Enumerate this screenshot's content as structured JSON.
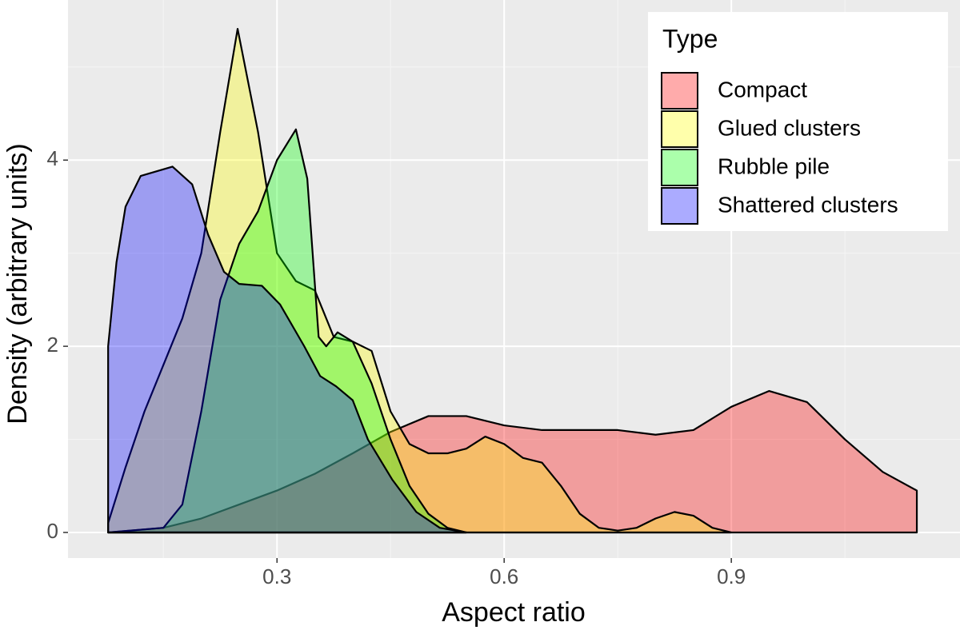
{
  "chart_data": {
    "type": "density",
    "xlabel": "Aspect ratio",
    "ylabel": "Density (arbitrary units)",
    "legend_title": "Type",
    "legend_position": "top-right",
    "alpha": 0.33,
    "grid": true,
    "xlim": [
      0.024,
      1.202
    ],
    "ylim": [
      -0.275,
      5.72
    ],
    "xticks": [
      0.3,
      0.6,
      0.9
    ],
    "yticks": [
      0,
      2,
      4
    ],
    "xminor": [
      0.15,
      0.45,
      0.75,
      1.05
    ],
    "yminor": [
      1,
      3,
      5
    ],
    "series": [
      {
        "name": "Compact",
        "color": "#ff0000",
        "x": [
          0.077,
          0.15,
          0.2,
          0.25,
          0.3,
          0.35,
          0.4,
          0.45,
          0.5,
          0.55,
          0.6,
          0.65,
          0.7,
          0.75,
          0.8,
          0.85,
          0.9,
          0.95,
          1.0,
          1.05,
          1.1,
          1.145
        ],
        "values": [
          0,
          0.05,
          0.15,
          0.3,
          0.45,
          0.63,
          0.85,
          1.08,
          1.25,
          1.25,
          1.15,
          1.1,
          1.1,
          1.1,
          1.05,
          1.1,
          1.35,
          1.52,
          1.4,
          1.0,
          0.65,
          0.45
        ]
      },
      {
        "name": "Glued clusters",
        "color": "#ffff00",
        "x": [
          0.077,
          0.1,
          0.125,
          0.15,
          0.175,
          0.2,
          0.225,
          0.248,
          0.275,
          0.3,
          0.325,
          0.35,
          0.375,
          0.4,
          0.425,
          0.45,
          0.475,
          0.5,
          0.525,
          0.55,
          0.575,
          0.6,
          0.625,
          0.65,
          0.675,
          0.7,
          0.725,
          0.75,
          0.775,
          0.8,
          0.825,
          0.85,
          0.875,
          0.9
        ],
        "values": [
          0.1,
          0.7,
          1.3,
          1.8,
          2.3,
          3.0,
          4.3,
          5.41,
          4.3,
          3.0,
          2.7,
          2.6,
          2.1,
          2.05,
          1.95,
          1.3,
          0.95,
          0.85,
          0.85,
          0.9,
          1.03,
          0.95,
          0.8,
          0.75,
          0.5,
          0.2,
          0.05,
          0.02,
          0.05,
          0.15,
          0.22,
          0.18,
          0.05,
          0
        ]
      },
      {
        "name": "Rubble pile",
        "color": "#00ff00",
        "x": [
          0.077,
          0.15,
          0.175,
          0.2,
          0.225,
          0.25,
          0.275,
          0.3,
          0.325,
          0.34,
          0.355,
          0.365,
          0.38,
          0.4,
          0.425,
          0.45,
          0.475,
          0.5,
          0.525,
          0.55
        ],
        "values": [
          0,
          0.05,
          0.3,
          1.3,
          2.5,
          3.1,
          3.45,
          4.0,
          4.33,
          3.8,
          2.1,
          2.0,
          2.15,
          2.05,
          1.6,
          1.0,
          0.5,
          0.2,
          0.05,
          0
        ]
      },
      {
        "name": "Shattered clusters",
        "color": "#0000ff",
        "x": [
          0.077,
          0.088,
          0.1,
          0.12,
          0.162,
          0.188,
          0.209,
          0.23,
          0.25,
          0.28,
          0.304,
          0.336,
          0.357,
          0.378,
          0.4,
          0.42,
          0.452,
          0.484,
          0.515,
          0.55
        ],
        "values": [
          2.0,
          2.9,
          3.5,
          3.83,
          3.93,
          3.74,
          3.2,
          2.8,
          2.67,
          2.65,
          2.45,
          2.0,
          1.68,
          1.57,
          1.42,
          1.0,
          0.57,
          0.22,
          0.05,
          0
        ]
      }
    ]
  }
}
